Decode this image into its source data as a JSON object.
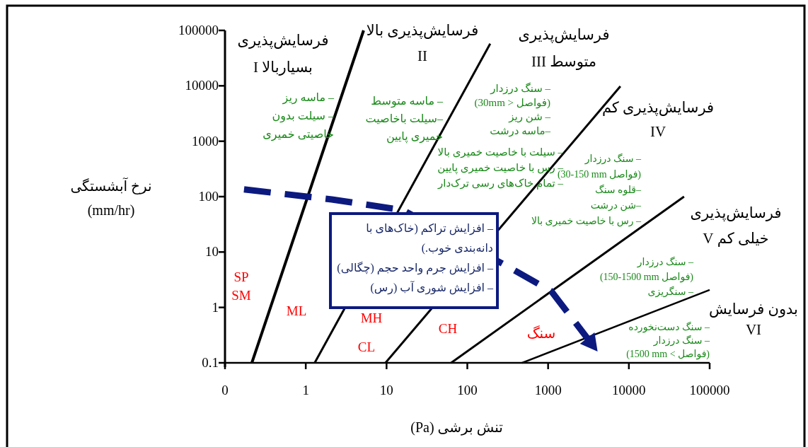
{
  "chart_data": {
    "type": "line",
    "xlabel": "تنش برشی (Pa)",
    "ylabel": "نرخ آبشستگی\n(mm/hr)",
    "log": "xy",
    "grid": false,
    "xlim": [
      0.1,
      100000
    ],
    "ylim": [
      0.1,
      100000
    ],
    "xticks": [
      {
        "value": 0.1,
        "label": "0"
      },
      1,
      10,
      100,
      1000,
      10000,
      100000
    ],
    "yticks": [
      0.1,
      1,
      10,
      100,
      1000,
      10000,
      100000
    ],
    "series": [
      {
        "color": "#000000",
        "x": [
          0.215,
          5.2
        ],
        "values": [
          0.1,
          100000
        ]
      },
      {
        "color": "#000000",
        "x": [
          1.29,
          192
        ],
        "values": [
          0.1,
          57500
        ]
      },
      {
        "color": "#000000",
        "x": [
          9.7,
          7850
        ],
        "values": [
          0.1,
          9800
        ]
      },
      {
        "color": "#000000",
        "x": [
          63,
          48200
        ],
        "values": [
          0.1,
          100
        ]
      },
      {
        "color": "#000000",
        "x": [
          477,
          100000
        ],
        "values": [
          0.1,
          2.07
        ]
      },
      {
        "color": "#0c1a80",
        "line_style": "dashed",
        "x": [
          0.172,
          2.1,
          16,
          330,
          1100,
          4100
        ],
        "values": [
          135,
          89,
          57,
          5.3,
          1.95,
          0.16
        ]
      }
    ],
    "annotations": [
      "فرسایش‌پذیری\nبسیاربالا I",
      "فرسایش‌پذیری بالا\nII",
      "فرسایش‌پذیری\nمتوسط III",
      "فرسایش‌پذیری کم\nIV",
      "فرسایش‌پذیری\nخیلی کم V",
      "بدون فرسایش\nVI",
      "– ماسه ریز\n– سیلت بدون\nخاصیتی خمیری",
      "–  ماسه متوسط\n–سیلت باخاصیت\nخمیری پایین",
      "– سنگ درزدار\n(فواصل < 30mm)\n– شن ریز\n–ماسه درشت",
      "– سیلت با خاصیت خمیری بالا\n– رس با خاصیت خمیری پایین\n– تمام خاک‌های رسی ترک‌دار",
      "– سنگ درزدار\n(فواصل 30-150 mm)\n–قلوه سنگ\n–شن درشت\n– رس با خاصیت خمیری بالا",
      "– سنگ درزدار\n(فواصل 150-1500 mm)\n– سنگریزی",
      "– سنگ دست‌نخورده\n– سنگ درزدار\n(فواصل > 1500 mm)",
      "SP\nSM",
      "ML",
      "MH",
      "CL",
      "CH",
      "سنگ",
      "– افزایش  تراکم (خاک‌های با\nدانه‌بندی خوب.)\n– افزایش جرم واحد حجم (چگالی)\n– افزایش شوری آب (رس)"
    ]
  }
}
